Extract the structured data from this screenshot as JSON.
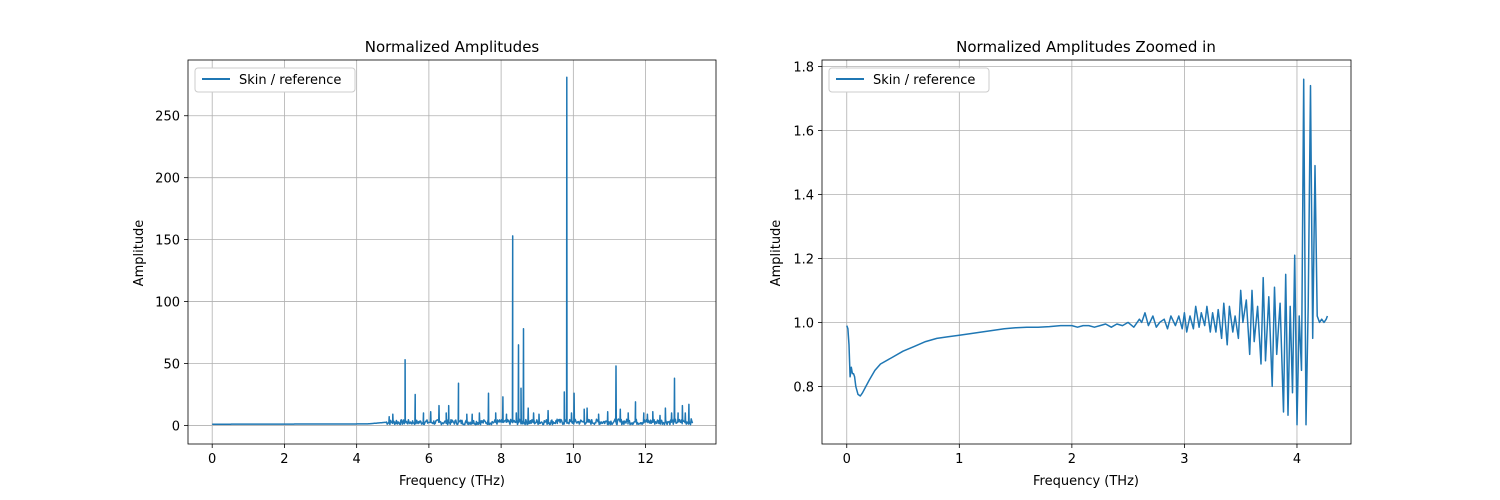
{
  "chart_data": [
    {
      "type": "line",
      "title": "Normalized Amplitudes",
      "xlabel": "Frequency (THz)",
      "ylabel": "Amplitude",
      "xlim": [
        -0.67,
        13.95
      ],
      "ylim": [
        -15,
        295
      ],
      "xticks": [
        0,
        2,
        4,
        6,
        8,
        10,
        12
      ],
      "yticks": [
        0,
        50,
        100,
        150,
        200,
        250
      ],
      "grid": true,
      "legend_position": "upper-left",
      "series": [
        {
          "name": "Skin / reference",
          "color": "#1f77b4",
          "baseline": [
            [
              0,
              1.0
            ],
            [
              4.3,
              1.2
            ],
            [
              4.8,
              2.5
            ],
            [
              13.3,
              3.0
            ]
          ],
          "x": [
            4.9,
            5.0,
            5.1,
            5.34,
            5.62,
            5.85,
            6.05,
            6.28,
            6.48,
            6.55,
            6.82,
            7.05,
            7.2,
            7.4,
            7.65,
            7.85,
            8.05,
            8.15,
            8.32,
            8.42,
            8.48,
            8.55,
            8.62,
            8.75,
            8.9,
            9.05,
            9.3,
            9.55,
            9.75,
            9.82,
            9.95,
            10.02,
            10.3,
            10.38,
            10.7,
            10.95,
            11.18,
            11.3,
            11.52,
            11.72,
            11.95,
            12.05,
            12.2,
            12.4,
            12.55,
            12.72,
            12.8,
            12.9,
            13.02,
            13.1,
            13.2
          ],
          "y": [
            7,
            9,
            4,
            53,
            25,
            10,
            11,
            16,
            10,
            16,
            34,
            9,
            9,
            10,
            26,
            10,
            23,
            9,
            153,
            10,
            65,
            30,
            78,
            14,
            10,
            9,
            12,
            5,
            27,
            281,
            10,
            26,
            13,
            14,
            9,
            11,
            48,
            13,
            10,
            19,
            10,
            9,
            11,
            8,
            14,
            10,
            38,
            10,
            16,
            10,
            17
          ]
        }
      ]
    },
    {
      "type": "line",
      "title": "Normalized Amplitudes Zoomed in",
      "xlabel": "Frequency (THz)",
      "ylabel": "Amplitude",
      "xlim": [
        -0.22,
        4.48
      ],
      "ylim": [
        0.62,
        1.82
      ],
      "xticks": [
        0,
        1,
        2,
        3,
        4
      ],
      "yticks": [
        0.8,
        1.0,
        1.2,
        1.4,
        1.6,
        1.8
      ],
      "grid": true,
      "legend_position": "upper-left",
      "series": [
        {
          "name": "Skin / reference",
          "color": "#1f77b4",
          "x": [
            0.0,
            0.01,
            0.02,
            0.03,
            0.04,
            0.05,
            0.06,
            0.07,
            0.08,
            0.1,
            0.12,
            0.14,
            0.17,
            0.2,
            0.25,
            0.3,
            0.4,
            0.5,
            0.6,
            0.7,
            0.8,
            0.9,
            1.0,
            1.1,
            1.2,
            1.3,
            1.4,
            1.5,
            1.6,
            1.7,
            1.8,
            1.9,
            2.0,
            2.05,
            2.1,
            2.15,
            2.2,
            2.25,
            2.3,
            2.35,
            2.4,
            2.45,
            2.5,
            2.55,
            2.6,
            2.62,
            2.65,
            2.68,
            2.72,
            2.75,
            2.78,
            2.82,
            2.85,
            2.88,
            2.92,
            2.95,
            2.98,
            3.0,
            3.02,
            3.05,
            3.08,
            3.1,
            3.13,
            3.15,
            3.18,
            3.2,
            3.23,
            3.25,
            3.28,
            3.3,
            3.33,
            3.35,
            3.38,
            3.4,
            3.43,
            3.45,
            3.48,
            3.5,
            3.52,
            3.55,
            3.58,
            3.6,
            3.62,
            3.65,
            3.68,
            3.7,
            3.72,
            3.75,
            3.78,
            3.8,
            3.82,
            3.85,
            3.88,
            3.9,
            3.92,
            3.94,
            3.96,
            3.98,
            4.0,
            4.02,
            4.04,
            4.06,
            4.08,
            4.1,
            4.12,
            4.14,
            4.16,
            4.18,
            4.2,
            4.22,
            4.24,
            4.26,
            4.27
          ],
          "y": [
            0.99,
            0.98,
            0.93,
            0.83,
            0.86,
            0.84,
            0.84,
            0.83,
            0.8,
            0.775,
            0.77,
            0.78,
            0.8,
            0.82,
            0.85,
            0.87,
            0.89,
            0.91,
            0.925,
            0.94,
            0.95,
            0.955,
            0.96,
            0.965,
            0.97,
            0.975,
            0.98,
            0.983,
            0.985,
            0.985,
            0.987,
            0.99,
            0.99,
            0.985,
            0.99,
            0.99,
            0.985,
            0.99,
            0.995,
            0.985,
            0.995,
            0.99,
            1.0,
            0.985,
            1.01,
            1.0,
            1.03,
            0.99,
            1.02,
            0.985,
            1.0,
            1.01,
            0.98,
            1.02,
            0.99,
            1.02,
            0.98,
            1.03,
            0.97,
            1.02,
            0.98,
            1.05,
            0.985,
            1.03,
            0.99,
            1.05,
            0.97,
            1.03,
            0.97,
            1.04,
            0.95,
            1.06,
            0.93,
            1.05,
            0.97,
            1.02,
            0.95,
            1.1,
            1.0,
            1.07,
            0.9,
            1.1,
            0.94,
            1.05,
            0.87,
            1.14,
            0.88,
            1.08,
            0.8,
            1.11,
            0.9,
            1.06,
            0.72,
            1.15,
            0.71,
            1.05,
            0.78,
            1.21,
            0.68,
            1.02,
            0.85,
            1.76,
            0.68,
            1.05,
            1.74,
            0.95,
            1.49,
            1.02,
            1.0,
            1.01,
            1.0,
            1.01,
            1.02
          ]
        }
      ]
    }
  ]
}
